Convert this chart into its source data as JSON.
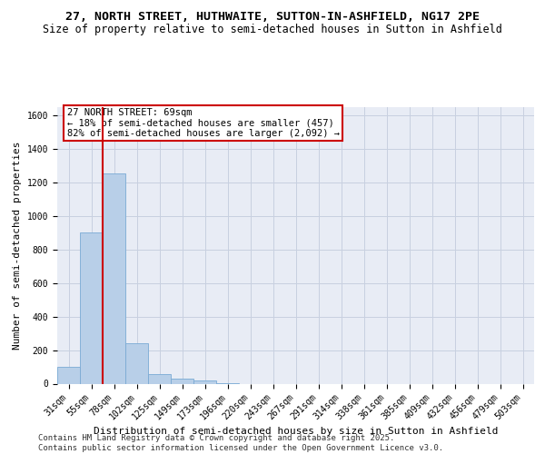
{
  "title": "27, NORTH STREET, HUTHWAITE, SUTTON-IN-ASHFIELD, NG17 2PE",
  "subtitle": "Size of property relative to semi-detached houses in Sutton in Ashfield",
  "xlabel": "Distribution of semi-detached houses by size in Sutton in Ashfield",
  "ylabel": "Number of semi-detached properties",
  "categories": [
    "31sqm",
    "55sqm",
    "78sqm",
    "102sqm",
    "125sqm",
    "149sqm",
    "173sqm",
    "196sqm",
    "220sqm",
    "243sqm",
    "267sqm",
    "291sqm",
    "314sqm",
    "338sqm",
    "361sqm",
    "385sqm",
    "409sqm",
    "432sqm",
    "456sqm",
    "479sqm",
    "503sqm"
  ],
  "values": [
    100,
    900,
    1250,
    240,
    55,
    30,
    20,
    5,
    0,
    0,
    0,
    0,
    0,
    0,
    0,
    0,
    0,
    0,
    0,
    0,
    0
  ],
  "bar_color": "#b8cfe8",
  "bar_edge_color": "#7aaad4",
  "red_line_x": 1.5,
  "annotation_title": "27 NORTH STREET: 69sqm",
  "annotation_line1": "← 18% of semi-detached houses are smaller (457)",
  "annotation_line2": "82% of semi-detached houses are larger (2,092) →",
  "annotation_box_color": "#ffffff",
  "annotation_box_edge": "#cc0000",
  "red_line_color": "#cc0000",
  "ylim": [
    0,
    1650
  ],
  "yticks": [
    0,
    200,
    400,
    600,
    800,
    1000,
    1200,
    1400,
    1600
  ],
  "grid_color": "#c8d0e0",
  "bg_color": "#e8ecf5",
  "footer_line1": "Contains HM Land Registry data © Crown copyright and database right 2025.",
  "footer_line2": "Contains public sector information licensed under the Open Government Licence v3.0.",
  "title_fontsize": 9.5,
  "subtitle_fontsize": 8.5,
  "xlabel_fontsize": 8,
  "ylabel_fontsize": 8,
  "tick_fontsize": 7,
  "footer_fontsize": 6.5,
  "ann_fontsize": 7.5
}
